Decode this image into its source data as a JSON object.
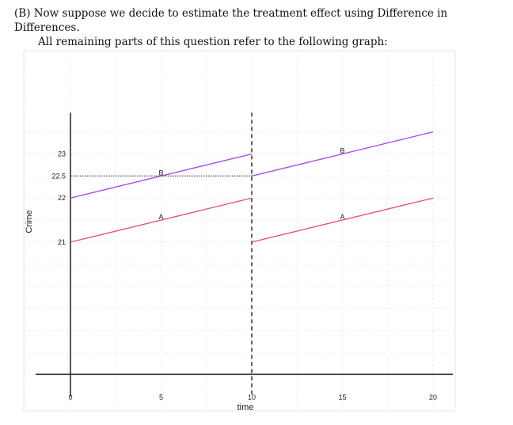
{
  "question": {
    "line1": "(B) Now suppose we decide to estimate the treatment effect using Difference in Differences.",
    "line2": "All remaining parts of this question refer to the following graph:"
  },
  "chart_data": {
    "type": "line",
    "title": "",
    "xlabel": "time",
    "ylabel": "Crime",
    "x_ticks": [
      0,
      5,
      10,
      15,
      20
    ],
    "y_ticks": [
      21,
      22,
      22.5,
      23
    ],
    "y_tick_labels": [
      "21",
      "22",
      "22.5",
      "23"
    ],
    "xlim": [
      -2,
      21
    ],
    "ylim": [
      18,
      23.9
    ],
    "grid": true,
    "intervention_x": 10,
    "series": [
      {
        "label": "B",
        "color": "#a442f0",
        "segments": [
          [
            [
              0,
              22
            ],
            [
              10,
              23
            ]
          ],
          [
            [
              10,
              22.5
            ],
            [
              20,
              23.5
            ]
          ]
        ]
      },
      {
        "label": "A",
        "color": "#ee4a74",
        "segments": [
          [
            [
              0,
              21
            ],
            [
              10,
              22
            ]
          ],
          [
            [
              10,
              21
            ],
            [
              20,
              22
            ]
          ]
        ]
      }
    ],
    "point_labels": [
      {
        "text": "B",
        "x": 5,
        "y": 22.5
      },
      {
        "text": "B",
        "x": 15,
        "y": 23
      },
      {
        "text": "A",
        "x": 5,
        "y": 21.5
      },
      {
        "text": "A",
        "x": 15,
        "y": 21.5
      }
    ],
    "reference_line": {
      "y": 22.5,
      "from_x": 0,
      "to_x": 10,
      "style": "dotted"
    }
  }
}
